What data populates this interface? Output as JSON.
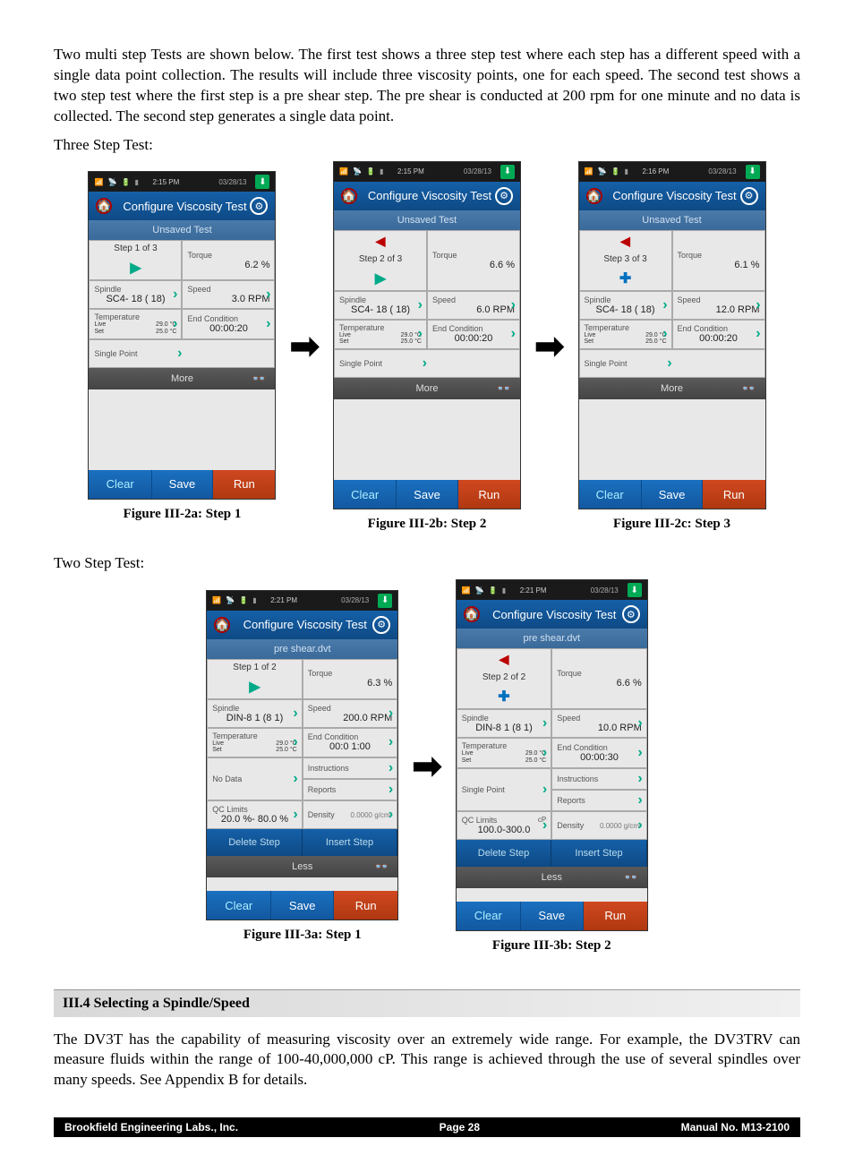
{
  "intro": "Two multi step Tests are shown below.  The first test shows a three step test where each step has a different speed with a single data point collection.  The results will include three viscosity points, one for each speed.  The second test shows a two step test where the first step is a pre shear step.  The pre shear is conducted at 200 rpm for one minute and no data is collected.  The second step generates a single data point.",
  "label3": "Three Step Test:",
  "label2": "Two Step Test:",
  "titlebar": "Configure Viscosity Test",
  "unsaved": "Unsaved Test",
  "preshear": "pre shear.dvt",
  "torque": "Torque",
  "spindle": "Spindle",
  "speed": "Speed",
  "temp": "Temperature",
  "live": "Live",
  "set": "Set",
  "endcond": "End Condition",
  "singlepoint": "Single Point",
  "nodata": "No Data",
  "instructions": "Instructions",
  "reports": "Reports",
  "qclimits": "QC Limits",
  "density": "Density",
  "more": "More",
  "less": "Less",
  "delstep": "Delete Step",
  "insstep": "Insert Step",
  "clear": "Clear",
  "save": "Save",
  "run": "Run",
  "sh4": "III.4  Selecting a Spindle/Speed",
  "body2": "The DV3T has the capability of measuring viscosity over an extremely wide range.  For example, the DV3TRV can measure fluids within the range of 100-40,000,000 cP.  This range is achieved through the use of several spindles over many speeds. See Appendix B for details.",
  "foot_l": "Brookfield Engineering Labs., Inc.",
  "foot_c": "Page  28",
  "foot_r": "Manual No. M13-2100",
  "s3": [
    {
      "step": "Step 1 of 3",
      "torque": "6.2 %",
      "spindle": "SC4- 18 ( 18)",
      "speed": "3.0 RPM",
      "temp1": "29.0 °C",
      "temp2": "25.0 °C",
      "end": "00:00:20",
      "time": "2:15 PM",
      "date": "03/28/13",
      "cap": "Figure III-2a: Step 1",
      "nav": "r"
    },
    {
      "step": "Step 2 of 3",
      "torque": "6.6 %",
      "spindle": "SC4- 18 ( 18)",
      "speed": "6.0 RPM",
      "temp1": "29.0 °C",
      "temp2": "25.0 °C",
      "end": "00:00:20",
      "time": "2:15 PM",
      "date": "03/28/13",
      "cap": "Figure III-2b: Step 2",
      "nav": "lr"
    },
    {
      "step": "Step 3 of 3",
      "torque": "6.1 %",
      "spindle": "SC4- 18 ( 18)",
      "speed": "12.0 RPM",
      "temp1": "29.0 °C",
      "temp2": "25.0 °C",
      "end": "00:00:20",
      "time": "2:16 PM",
      "date": "03/28/13",
      "cap": "Figure III-2c: Step 3",
      "nav": "lp"
    }
  ],
  "s2": [
    {
      "step": "Step 1 of 2",
      "torque": "6.3 %",
      "spindle": "DIN-8 1 (8 1)",
      "speed": "200.0 RPM",
      "temp1": "29.0 °C",
      "temp2": "25.0 °C",
      "end": "00:0 1:00",
      "data": "No Data",
      "qc": "20.0 %- 80.0 %",
      "dens": "0.0000 g/cm³",
      "time": "2:21 PM",
      "date": "03/28/13",
      "cap": "Figure III-3a: Step 1",
      "nav": "r"
    },
    {
      "step": "Step 2 of 2",
      "torque": "6.6 %",
      "spindle": "DIN-8 1 (8 1)",
      "speed": "10.0 RPM",
      "temp1": "29.0 °C",
      "temp2": "25.0 °C",
      "end": "00:00:30",
      "data": "Single Point",
      "qc": "100.0-300.0",
      "qcu": "cP",
      "dens": "0.0000 g/cm³",
      "time": "2:21 PM",
      "date": "03/28/13",
      "cap": "Figure III-3b: Step 2",
      "nav": "lp"
    }
  ]
}
